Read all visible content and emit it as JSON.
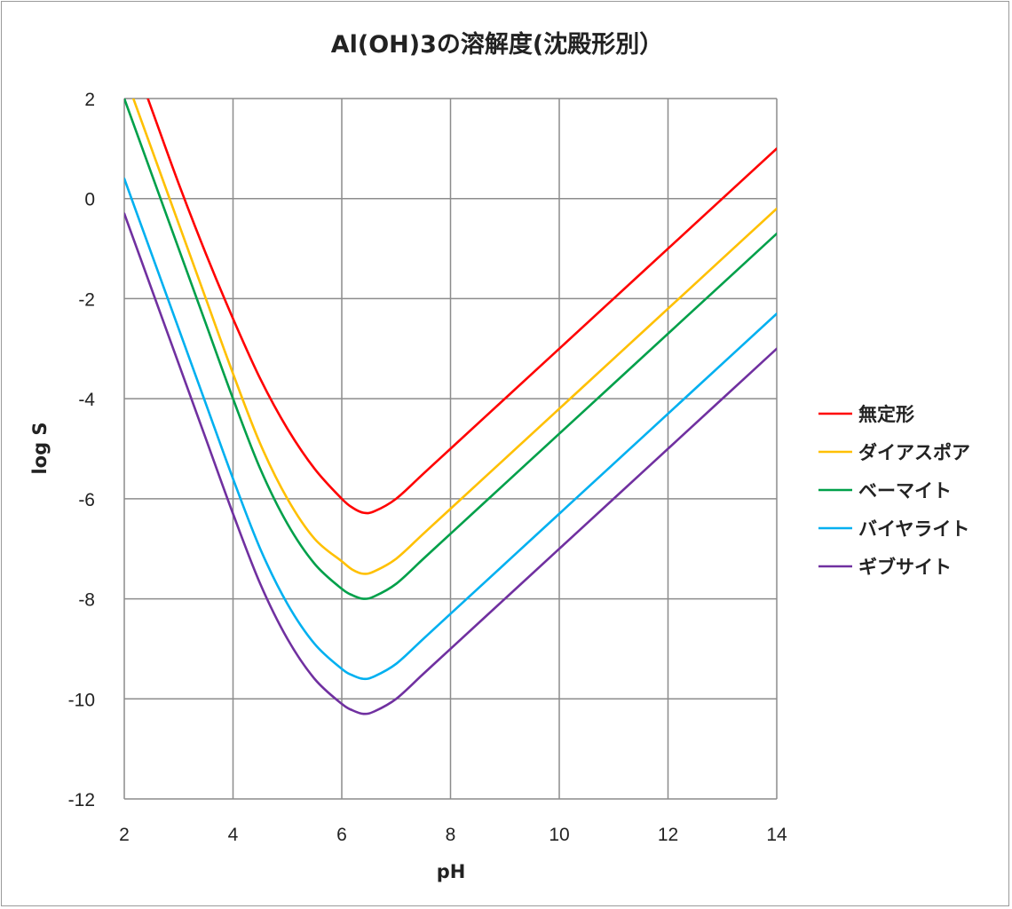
{
  "chart_data": {
    "type": "line",
    "title": "Al(OH)3の溶解度(沈殿形別）",
    "xlabel": "pH",
    "ylabel": "log S",
    "xlim": [
      2,
      14
    ],
    "ylim": [
      -12,
      2
    ],
    "xticks": [
      "2",
      "4",
      "6",
      "8",
      "10",
      "12",
      "14"
    ],
    "yticks": [
      "2",
      "0",
      "-2",
      "-4",
      "-6",
      "-8",
      "-10",
      "-12"
    ],
    "grid": true,
    "legend_position": "right",
    "x": [
      2,
      2.5,
      3,
      3.5,
      4,
      4.5,
      5,
      5.5,
      6,
      6.2,
      6.4,
      6.6,
      7,
      7.5,
      8,
      9,
      10,
      11,
      12,
      13,
      14
    ],
    "series": [
      {
        "name": "無定形",
        "color": "#ff0000",
        "values": [
          3.3,
          1.8,
          0.3,
          -1.1,
          -2.4,
          -3.6,
          -4.6,
          -5.4,
          -6.0,
          -6.18,
          -6.28,
          -6.25,
          -6.0,
          -5.5,
          -5.0,
          -4.0,
          -3.0,
          -2.0,
          -1.0,
          0.0,
          1.0
        ]
      },
      {
        "name": "ダイアスポア",
        "color": "#ffc000",
        "values": [
          2.5,
          1.0,
          -0.5,
          -2.0,
          -3.5,
          -4.9,
          -6.0,
          -6.8,
          -7.25,
          -7.42,
          -7.5,
          -7.45,
          -7.2,
          -6.7,
          -6.2,
          -5.2,
          -4.2,
          -3.2,
          -2.2,
          -1.2,
          -0.2
        ]
      },
      {
        "name": "ベーマイト",
        "color": "#00a04a",
        "values": [
          2.0,
          0.5,
          -1.0,
          -2.5,
          -4.0,
          -5.4,
          -6.5,
          -7.3,
          -7.8,
          -7.93,
          -8.0,
          -7.95,
          -7.7,
          -7.2,
          -6.7,
          -5.7,
          -4.7,
          -3.7,
          -2.7,
          -1.7,
          -0.7
        ]
      },
      {
        "name": "バイヤライト",
        "color": "#00b0f0",
        "values": [
          0.4,
          -1.1,
          -2.6,
          -4.1,
          -5.6,
          -7.0,
          -8.1,
          -8.9,
          -9.4,
          -9.53,
          -9.6,
          -9.55,
          -9.3,
          -8.8,
          -8.3,
          -7.3,
          -6.3,
          -5.3,
          -4.3,
          -3.3,
          -2.3
        ]
      },
      {
        "name": "ギブサイト",
        "color": "#7030a0",
        "values": [
          -0.3,
          -1.8,
          -3.3,
          -4.8,
          -6.3,
          -7.7,
          -8.8,
          -9.6,
          -10.1,
          -10.23,
          -10.3,
          -10.25,
          -10.0,
          -9.5,
          -9.0,
          -8.0,
          -7.0,
          -6.0,
          -5.0,
          -4.0,
          -3.0
        ]
      }
    ]
  }
}
